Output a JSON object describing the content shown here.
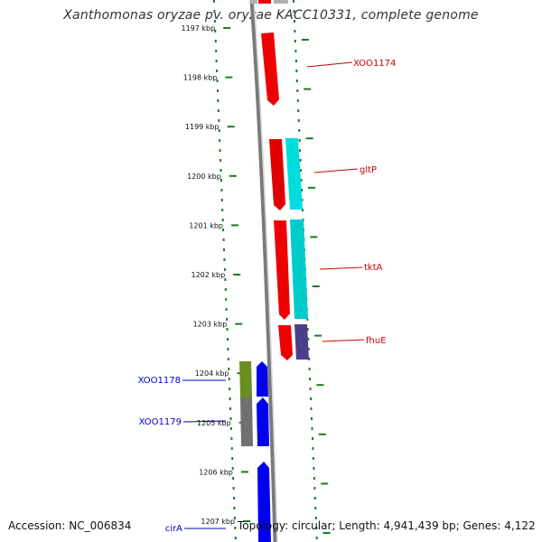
{
  "title": "Xanthomonas oryzae pv. oryzae KACC10331, complete genome",
  "footer": {
    "accession": "Accession: NC_006834",
    "stats": "Topology: circular; Length: 4,941,439 bp; Genes: 4,122"
  },
  "colors": {
    "ruler_tick": "#1e7a1e",
    "backbone": "#888888",
    "feature_red": "#ee0000",
    "feature_cyan": "#00dddd",
    "feature_blue": "#0000ee",
    "feature_olive": "#6b8e23",
    "feature_gray": "#707070",
    "feature_purple": "#4b3f8c",
    "label_red": "#cc0000",
    "label_blue": "#0000cc"
  },
  "ruler": {
    "ticks": [
      "1197 kbp",
      "1198 kbp",
      "1199 kbp",
      "1200 kbp",
      "1201 kbp",
      "1202 kbp",
      "1203 kbp",
      "1204 kbp",
      "1205 kbp",
      "1206 kbp",
      "1207 kbp"
    ]
  },
  "features": {
    "right_labels": [
      "XOO1174",
      "gltP",
      "tktA",
      "fhuE"
    ],
    "left_labels": [
      "XOO1178",
      "XOO1179",
      "cirA"
    ]
  }
}
